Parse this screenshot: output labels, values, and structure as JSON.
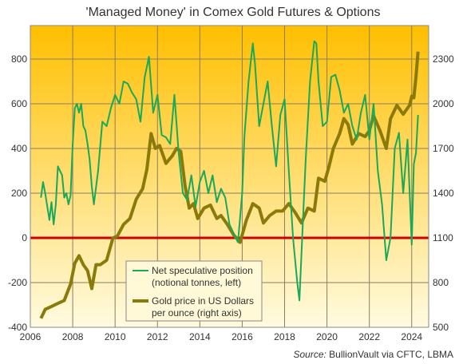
{
  "chart_data": {
    "type": "line",
    "title": "'Managed Money' in Comex Gold Futures & Options",
    "source_label": "Source:",
    "source_text": " BullionVault via CFTC, LBMA",
    "x_ticks": [
      "2006",
      "2008",
      "2010",
      "2012",
      "2014",
      "2016",
      "2018",
      "2020",
      "2022",
      "2024"
    ],
    "xlim": [
      2006,
      2024.8
    ],
    "left_axis": {
      "ticks": [
        "-400",
        "-200",
        "0",
        "200",
        "400",
        "600",
        "800"
      ],
      "ylim": [
        -400,
        950
      ]
    },
    "right_axis": {
      "ticks": [
        "500",
        "800",
        "1100",
        "1400",
        "1700",
        "2000",
        "2300"
      ],
      "ylim": [
        500,
        2525
      ]
    },
    "grid": true,
    "zero_line_color": "#cc0000",
    "background_gradient": [
      "#ffbf00",
      "#fffbe0"
    ],
    "legend_position": "lower-center",
    "series": [
      {
        "name": "Net speculative position (notional tonnes, left)",
        "legend_lines": [
          "Net speculative position",
          "(notional tonnes, left)"
        ],
        "axis": "left",
        "color": "#1aa85a",
        "x": [
          2006.5,
          2006.6,
          2006.7,
          2006.9,
          2007.0,
          2007.1,
          2007.2,
          2007.3,
          2007.5,
          2007.6,
          2007.7,
          2007.8,
          2007.9,
          2008.0,
          2008.1,
          2008.2,
          2008.3,
          2008.4,
          2008.5,
          2008.6,
          2008.7,
          2008.8,
          2008.9,
          2009.0,
          2009.2,
          2009.4,
          2009.6,
          2009.8,
          2010.0,
          2010.2,
          2010.4,
          2010.6,
          2010.8,
          2011.0,
          2011.2,
          2011.4,
          2011.6,
          2011.8,
          2012.0,
          2012.2,
          2012.4,
          2012.6,
          2012.8,
          2013.0,
          2013.2,
          2013.4,
          2013.6,
          2013.8,
          2014.0,
          2014.2,
          2014.4,
          2014.6,
          2014.8,
          2015.0,
          2015.2,
          2015.4,
          2015.6,
          2015.8,
          2016.0,
          2016.1,
          2016.3,
          2016.5,
          2016.6,
          2016.8,
          2017.0,
          2017.2,
          2017.4,
          2017.6,
          2017.8,
          2018.0,
          2018.2,
          2018.4,
          2018.6,
          2018.7,
          2018.9,
          2019.0,
          2019.2,
          2019.4,
          2019.5,
          2019.6,
          2019.8,
          2020.0,
          2020.2,
          2020.4,
          2020.6,
          2020.8,
          2021.0,
          2021.2,
          2021.4,
          2021.6,
          2021.8,
          2022.0,
          2022.2,
          2022.4,
          2022.6,
          2022.8,
          2023.0,
          2023.2,
          2023.4,
          2023.6,
          2023.8,
          2024.0,
          2024.1,
          2024.2,
          2024.3
        ],
        "values": [
          180,
          250,
          200,
          80,
          160,
          60,
          150,
          320,
          280,
          180,
          200,
          150,
          190,
          420,
          580,
          600,
          560,
          600,
          500,
          480,
          420,
          350,
          230,
          150,
          300,
          520,
          500,
          580,
          640,
          600,
          700,
          690,
          650,
          620,
          520,
          720,
          810,
          560,
          640,
          460,
          450,
          420,
          640,
          380,
          200,
          170,
          280,
          140,
          250,
          300,
          200,
          280,
          160,
          220,
          180,
          60,
          20,
          -20,
          200,
          450,
          700,
          870,
          780,
          500,
          600,
          700,
          500,
          320,
          550,
          620,
          300,
          0,
          -200,
          -280,
          150,
          360,
          700,
          880,
          870,
          700,
          500,
          520,
          720,
          730,
          660,
          560,
          600,
          500,
          440,
          560,
          640,
          440,
          600,
          300,
          150,
          -100,
          0,
          400,
          470,
          200,
          440,
          -30,
          330,
          380,
          550
        ]
      },
      {
        "name": "Gold price in US Dollars per ounce (right axis)",
        "legend_lines": [
          "Gold price in US Dollars",
          "per ounce (right axis)"
        ],
        "axis": "right",
        "color": "#8a7a0a",
        "x": [
          2006.5,
          2006.7,
          2007.0,
          2007.3,
          2007.6,
          2007.9,
          2008.1,
          2008.3,
          2008.5,
          2008.7,
          2008.9,
          2009.1,
          2009.3,
          2009.6,
          2009.9,
          2010.1,
          2010.4,
          2010.7,
          2011.0,
          2011.3,
          2011.5,
          2011.7,
          2011.9,
          2012.1,
          2012.4,
          2012.7,
          2012.9,
          2013.1,
          2013.3,
          2013.5,
          2013.7,
          2013.9,
          2014.2,
          2014.5,
          2014.8,
          2015.0,
          2015.3,
          2015.6,
          2015.9,
          2016.2,
          2016.5,
          2016.8,
          2017.0,
          2017.3,
          2017.6,
          2017.9,
          2018.2,
          2018.5,
          2018.8,
          2019.1,
          2019.4,
          2019.6,
          2019.9,
          2020.1,
          2020.3,
          2020.6,
          2020.8,
          2021.0,
          2021.2,
          2021.5,
          2021.8,
          2022.0,
          2022.2,
          2022.5,
          2022.8,
          2023.0,
          2023.3,
          2023.6,
          2023.9,
          2024.0,
          2024.1,
          2024.2,
          2024.3
        ],
        "values": [
          560,
          620,
          640,
          660,
          680,
          790,
          930,
          980,
          920,
          880,
          760,
          920,
          920,
          950,
          1100,
          1110,
          1190,
          1230,
          1360,
          1430,
          1560,
          1800,
          1700,
          1720,
          1600,
          1650,
          1700,
          1680,
          1450,
          1300,
          1330,
          1230,
          1300,
          1320,
          1230,
          1250,
          1190,
          1120,
          1070,
          1220,
          1330,
          1300,
          1200,
          1250,
          1280,
          1280,
          1330,
          1270,
          1200,
          1300,
          1280,
          1500,
          1480,
          1580,
          1700,
          1800,
          1900,
          1860,
          1730,
          1800,
          1780,
          1820,
          1920,
          1820,
          1700,
          1900,
          1990,
          1930,
          1990,
          2050,
          2040,
          2180,
          2350
        ]
      }
    ]
  }
}
